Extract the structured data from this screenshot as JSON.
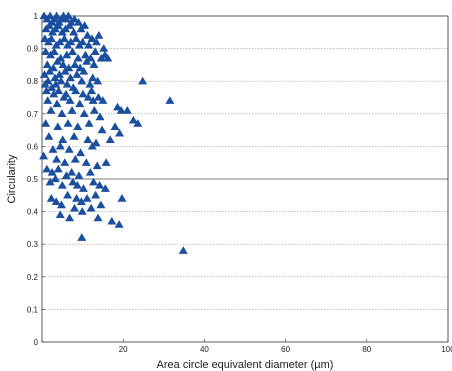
{
  "chart_data": {
    "type": "scatter",
    "xlabel": "Area circle equivalent diameter (µm)",
    "ylabel": "Circularity",
    "xlim": [
      0,
      100
    ],
    "ylim": [
      0,
      1
    ],
    "x_ticks": [
      "0",
      "20",
      "40",
      "60",
      "80",
      "100"
    ],
    "y_ticks": [
      "0",
      "0.1",
      "0.2",
      "0.3",
      "0.4",
      "0.5",
      "0.6",
      "0.7",
      "0.8",
      "0.9",
      "1"
    ],
    "grid": "horizontal dotted",
    "marker": "triangle",
    "marker_color": "#1a4fa0",
    "series": [
      {
        "points": [
          [
            0.5,
            1.0
          ],
          [
            1.2,
            0.99
          ],
          [
            2.0,
            1.0
          ],
          [
            2.5,
            0.98
          ],
          [
            3.1,
            0.99
          ],
          [
            3.6,
            1.0
          ],
          [
            4.2,
            0.98
          ],
          [
            4.8,
            0.99
          ],
          [
            5.3,
            1.0
          ],
          [
            6.0,
            0.99
          ],
          [
            6.5,
            1.0
          ],
          [
            7.2,
            0.98
          ],
          [
            8.0,
            0.99
          ],
          [
            9.0,
            0.98
          ],
          [
            1.0,
            0.96
          ],
          [
            1.8,
            0.97
          ],
          [
            2.6,
            0.95
          ],
          [
            3.3,
            0.96
          ],
          [
            4.0,
            0.97
          ],
          [
            5.0,
            0.95
          ],
          [
            5.8,
            0.96
          ],
          [
            6.8,
            0.97
          ],
          [
            7.8,
            0.95
          ],
          [
            9.6,
            0.96
          ],
          [
            10.5,
            0.97
          ],
          [
            11.2,
            0.94
          ],
          [
            0.7,
            0.93
          ],
          [
            1.6,
            0.92
          ],
          [
            2.3,
            0.93
          ],
          [
            3.5,
            0.91
          ],
          [
            4.4,
            0.92
          ],
          [
            5.5,
            0.93
          ],
          [
            6.3,
            0.91
          ],
          [
            7.1,
            0.92
          ],
          [
            8.4,
            0.93
          ],
          [
            9.2,
            0.91
          ],
          [
            10.0,
            0.92
          ],
          [
            11.5,
            0.91
          ],
          [
            12.3,
            0.93
          ],
          [
            13.4,
            0.92
          ],
          [
            14.0,
            0.94
          ],
          [
            15.2,
            0.9
          ],
          [
            0.9,
            0.89
          ],
          [
            2.1,
            0.88
          ],
          [
            3.0,
            0.89
          ],
          [
            4.6,
            0.87
          ],
          [
            6.1,
            0.88
          ],
          [
            7.5,
            0.89
          ],
          [
            8.9,
            0.87
          ],
          [
            10.7,
            0.88
          ],
          [
            12.0,
            0.87
          ],
          [
            13.1,
            0.89
          ],
          [
            14.6,
            0.87
          ],
          [
            15.5,
            0.88
          ],
          [
            16.2,
            0.87
          ],
          [
            1.3,
            0.85
          ],
          [
            2.8,
            0.84
          ],
          [
            3.8,
            0.86
          ],
          [
            5.2,
            0.85
          ],
          [
            6.6,
            0.84
          ],
          [
            8.1,
            0.85
          ],
          [
            9.4,
            0.84
          ],
          [
            11.0,
            0.86
          ],
          [
            12.8,
            0.85
          ],
          [
            0.6,
            0.82
          ],
          [
            1.9,
            0.83
          ],
          [
            3.2,
            0.81
          ],
          [
            4.3,
            0.82
          ],
          [
            5.7,
            0.83
          ],
          [
            7.0,
            0.81
          ],
          [
            8.6,
            0.82
          ],
          [
            10.3,
            0.83
          ],
          [
            12.5,
            0.81
          ],
          [
            0.8,
            0.79
          ],
          [
            1.5,
            0.8
          ],
          [
            2.4,
            0.78
          ],
          [
            3.4,
            0.79
          ],
          [
            4.7,
            0.8
          ],
          [
            6.2,
            0.79
          ],
          [
            7.7,
            0.78
          ],
          [
            9.8,
            0.8
          ],
          [
            11.8,
            0.79
          ],
          [
            13.7,
            0.8
          ],
          [
            24.8,
            0.8
          ],
          [
            1.1,
            0.77
          ],
          [
            2.9,
            0.76
          ],
          [
            4.1,
            0.77
          ],
          [
            5.9,
            0.76
          ],
          [
            8.3,
            0.77
          ],
          [
            10.1,
            0.76
          ],
          [
            12.2,
            0.77
          ],
          [
            1.4,
            0.74
          ],
          [
            3.7,
            0.73
          ],
          [
            5.4,
            0.75
          ],
          [
            6.9,
            0.74
          ],
          [
            9.3,
            0.73
          ],
          [
            11.4,
            0.75
          ],
          [
            12.6,
            0.74
          ],
          [
            13.9,
            0.75
          ],
          [
            15.0,
            0.74
          ],
          [
            31.5,
            0.74
          ],
          [
            2.2,
            0.71
          ],
          [
            4.9,
            0.7
          ],
          [
            7.4,
            0.71
          ],
          [
            10.4,
            0.7
          ],
          [
            12.9,
            0.71
          ],
          [
            14.3,
            0.69
          ],
          [
            18.6,
            0.72
          ],
          [
            19.5,
            0.71
          ],
          [
            21.0,
            0.71
          ],
          [
            22.5,
            0.68
          ],
          [
            23.6,
            0.67
          ],
          [
            0.9,
            0.67
          ],
          [
            3.9,
            0.66
          ],
          [
            6.4,
            0.67
          ],
          [
            8.8,
            0.66
          ],
          [
            11.6,
            0.67
          ],
          [
            14.8,
            0.65
          ],
          [
            18.0,
            0.66
          ],
          [
            1.7,
            0.63
          ],
          [
            5.1,
            0.62
          ],
          [
            7.9,
            0.63
          ],
          [
            11.3,
            0.62
          ],
          [
            13.3,
            0.61
          ],
          [
            16.8,
            0.62
          ],
          [
            19.1,
            0.64
          ],
          [
            2.7,
            0.59
          ],
          [
            4.5,
            0.6
          ],
          [
            6.7,
            0.59
          ],
          [
            9.5,
            0.58
          ],
          [
            12.4,
            0.6
          ],
          [
            0.4,
            0.57
          ],
          [
            3.6,
            0.56
          ],
          [
            5.6,
            0.55
          ],
          [
            8.2,
            0.56
          ],
          [
            10.9,
            0.55
          ],
          [
            13.6,
            0.54
          ],
          [
            15.8,
            0.55
          ],
          [
            1.2,
            0.53
          ],
          [
            2.5,
            0.52
          ],
          [
            4.0,
            0.53
          ],
          [
            6.0,
            0.51
          ],
          [
            7.3,
            0.52
          ],
          [
            9.1,
            0.51
          ],
          [
            11.9,
            0.52
          ],
          [
            2.0,
            0.49
          ],
          [
            3.3,
            0.5
          ],
          [
            5.0,
            0.48
          ],
          [
            7.6,
            0.49
          ],
          [
            8.7,
            0.48
          ],
          [
            10.2,
            0.47
          ],
          [
            12.7,
            0.49
          ],
          [
            14.2,
            0.48
          ],
          [
            15.6,
            0.47
          ],
          [
            2.3,
            0.44
          ],
          [
            3.5,
            0.43
          ],
          [
            4.8,
            0.42
          ],
          [
            6.3,
            0.45
          ],
          [
            8.5,
            0.44
          ],
          [
            9.7,
            0.43
          ],
          [
            11.1,
            0.44
          ],
          [
            13.2,
            0.45
          ],
          [
            14.5,
            0.42
          ],
          [
            19.7,
            0.44
          ],
          [
            4.5,
            0.39
          ],
          [
            6.8,
            0.38
          ],
          [
            8.0,
            0.41
          ],
          [
            9.9,
            0.4
          ],
          [
            12.1,
            0.41
          ],
          [
            13.8,
            0.38
          ],
          [
            17.2,
            0.37
          ],
          [
            19.0,
            0.36
          ],
          [
            9.8,
            0.32
          ],
          [
            34.8,
            0.28
          ]
        ]
      }
    ]
  }
}
